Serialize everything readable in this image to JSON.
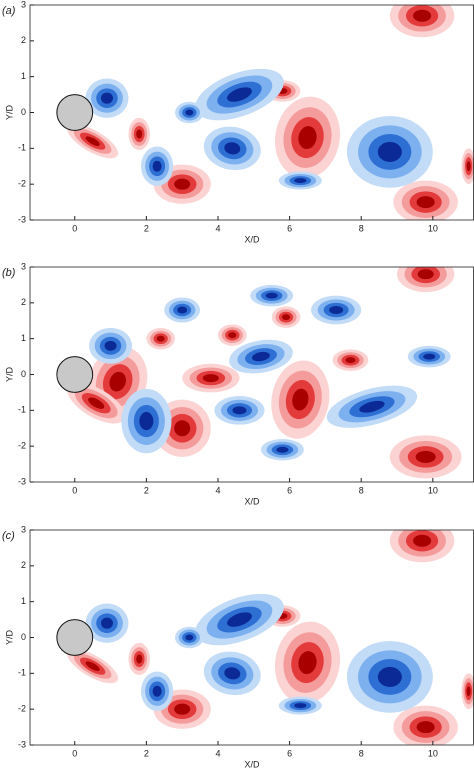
{
  "chart_data": [
    {
      "type": "contour",
      "panel_label": "(a)",
      "xlabel": "X/D",
      "ylabel": "Y/D",
      "xlim": [
        -1.25,
        11.15
      ],
      "ylim": [
        -3,
        3
      ],
      "xticks": [
        0,
        2,
        4,
        6,
        8,
        10
      ],
      "yticks": [
        -3,
        -2,
        -1,
        0,
        1,
        2,
        3
      ]
    },
    {
      "type": "contour",
      "panel_label": "(b)",
      "xlabel": "X/D",
      "ylabel": "Y/D",
      "xlim": [
        -1.25,
        11.15
      ],
      "ylim": [
        -3,
        3
      ],
      "xticks": [
        0,
        2,
        4,
        6,
        8,
        10
      ],
      "yticks": [
        -3,
        -2,
        -1,
        0,
        1,
        2,
        3
      ]
    },
    {
      "type": "contour",
      "panel_label": "(c)",
      "xlabel": "X/D",
      "ylabel": "Y/D",
      "xlim": [
        -1.25,
        11.15
      ],
      "ylim": [
        -3,
        3
      ],
      "xticks": [
        0,
        2,
        4,
        6,
        8,
        10
      ],
      "yticks": [
        -3,
        -2,
        -1,
        0,
        1,
        2,
        3
      ]
    }
  ]
}
